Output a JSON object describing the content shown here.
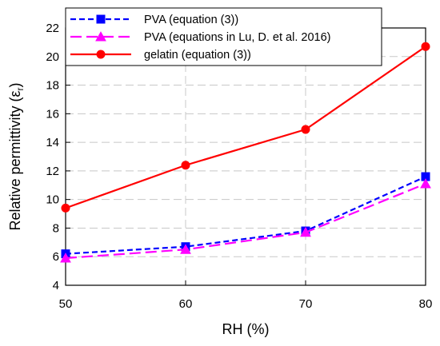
{
  "chart_data": {
    "type": "line",
    "xlabel": "RH (%)",
    "ylabel_main": "Relative permittivity (ε",
    "ylabel_sub": "r",
    "ylabel_close": ")",
    "x": [
      50,
      60,
      70,
      80
    ],
    "xlim": [
      50,
      80
    ],
    "ylim": [
      4,
      22
    ],
    "xticks": [
      "50",
      "60",
      "70",
      "80"
    ],
    "yticks": [
      "4",
      "6",
      "8",
      "10",
      "12",
      "14",
      "16",
      "18",
      "20",
      "22"
    ],
    "grid": true,
    "legend_position": "top-left",
    "series": [
      {
        "name": "PVA (equation (3))",
        "values": [
          6.2,
          6.7,
          7.8,
          11.6
        ],
        "color": "#0000ff",
        "dash": "dashed",
        "marker": "square"
      },
      {
        "name": "PVA (equations in Lu, D. et al. 2016)",
        "values": [
          5.9,
          6.5,
          7.7,
          11.1
        ],
        "color": "#ff00ff",
        "dash": "long-dash",
        "marker": "triangle"
      },
      {
        "name": "gelatin (equation (3))",
        "values": [
          9.4,
          12.4,
          14.9,
          20.7
        ],
        "color": "#ff0000",
        "dash": "solid",
        "marker": "circle"
      }
    ]
  }
}
